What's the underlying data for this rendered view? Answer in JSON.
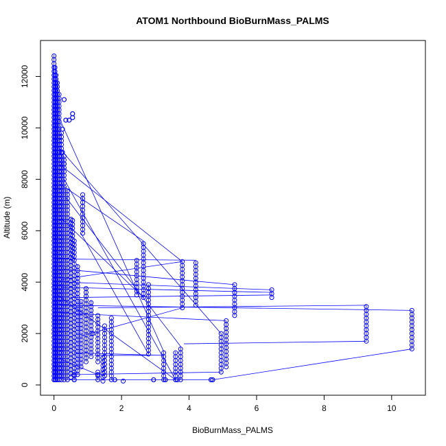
{
  "chart_data": {
    "type": "scatter",
    "title": "ATOM1 Northbound BioBurnMass_PALMS",
    "xlabel": "BioBurnMass_PALMS",
    "ylabel": "Altitude (m)",
    "xlim": [
      -0.4,
      11.0
    ],
    "ylim": [
      -400,
      13400
    ],
    "x_ticks": [
      0,
      2,
      4,
      6,
      8,
      10
    ],
    "y_ticks": [
      0,
      2000,
      4000,
      6000,
      8000,
      10000,
      12000
    ],
    "x_tick_labels": [
      "0",
      "2",
      "4",
      "6",
      "8",
      "10"
    ],
    "y_tick_labels": [
      "0",
      "2000",
      "4000",
      "6000",
      "8000",
      "10000",
      "12000"
    ],
    "colors": {
      "series": "#0000ff",
      "axis": "#000000"
    },
    "series": [
      {
        "name": "",
        "style": "points+lines",
        "columns": [
          {
            "x": 0.0,
            "y": [
              200,
              12850
            ]
          },
          {
            "x": 0.03,
            "y": [
              200,
              12400
            ]
          },
          {
            "x": 0.06,
            "y": [
              200,
              12100
            ]
          },
          {
            "x": 0.1,
            "y": [
              200,
              11800
            ]
          },
          {
            "x": 0.15,
            "y": [
              200,
              11300
            ]
          },
          {
            "x": 0.22,
            "y": [
              200,
              9800
            ]
          },
          {
            "x": 0.3,
            "y": [
              200,
              8900
            ]
          },
          {
            "x": 0.4,
            "y": [
              200,
              7600
            ]
          },
          {
            "x": 0.5,
            "y": [
              300,
              6500
            ]
          },
          {
            "x": 0.6,
            "y": [
              200,
              5600
            ]
          },
          {
            "x": 0.7,
            "y": [
              400,
              4700
            ]
          },
          {
            "x": 0.8,
            "y": [
              700,
              3300
            ]
          },
          {
            "x": 0.95,
            "y": [
              900,
              3800
            ]
          },
          {
            "x": 1.1,
            "y": [
              1100,
              3300
            ]
          },
          {
            "x": 1.3,
            "y": [
              900,
              2700
            ]
          },
          {
            "x": 1.5,
            "y": [
              350,
              2300
            ]
          },
          {
            "x": 1.7,
            "y": [
              200,
              2600
            ]
          },
          {
            "x": 2.45,
            "y": [
              3500,
              4900
            ]
          },
          {
            "x": 2.65,
            "y": [
              3400,
              5600
            ]
          },
          {
            "x": 2.8,
            "y": [
              1200,
              3900
            ]
          },
          {
            "x": 3.25,
            "y": [
              200,
              1300
            ]
          },
          {
            "x": 3.6,
            "y": [
              200,
              1300
            ]
          },
          {
            "x": 3.75,
            "y": [
              200,
              1500
            ]
          },
          {
            "x": 3.8,
            "y": [
              3000,
              4800
            ]
          },
          {
            "x": 4.2,
            "y": [
              3100,
              4800
            ]
          },
          {
            "x": 4.95,
            "y": [
              500,
              2000
            ]
          },
          {
            "x": 5.1,
            "y": [
              700,
              2500
            ]
          },
          {
            "x": 5.35,
            "y": [
              2700,
              3900
            ]
          },
          {
            "x": 6.45,
            "y": [
              3400,
              3700
            ]
          },
          {
            "x": 9.25,
            "y": [
              1700,
              3100
            ]
          },
          {
            "x": 10.6,
            "y": [
              1400,
              2900
            ]
          },
          {
            "x": 0.85,
            "y": [
              5900,
              7400
            ]
          },
          {
            "x": 0.55,
            "y": [
              4900,
              6500
            ]
          },
          {
            "x": 1.3,
            "y": [
              200,
              500
            ]
          },
          {
            "x": 1.45,
            "y": [
              150,
              1050
            ]
          },
          {
            "x": 2.05,
            "y": [
              150,
              200
            ]
          }
        ],
        "points": [
          {
            "x": 0.3,
            "y": 11100
          },
          {
            "x": 0.35,
            "y": 10300
          },
          {
            "x": 0.45,
            "y": 10300
          },
          {
            "x": 0.55,
            "y": 10400
          },
          {
            "x": 0.55,
            "y": 10550
          },
          {
            "x": 0.25,
            "y": 9950
          },
          {
            "x": 0.3,
            "y": 8600
          },
          {
            "x": 0.25,
            "y": 9050
          },
          {
            "x": 1.15,
            "y": 2000
          },
          {
            "x": 1.3,
            "y": 400
          },
          {
            "x": 2.95,
            "y": 200
          },
          {
            "x": 3.3,
            "y": 200
          },
          {
            "x": 3.65,
            "y": 200
          },
          {
            "x": 4.65,
            "y": 200
          },
          {
            "x": 4.7,
            "y": 200
          },
          {
            "x": 1.8,
            "y": 200
          },
          {
            "x": 0.6,
            "y": 200
          },
          {
            "x": 0.6,
            "y": 400
          }
        ],
        "segments": [
          [
            [
              0.15,
              10400
            ],
            [
              3.25,
              1300
            ]
          ],
          [
            [
              0.15,
              8600
            ],
            [
              3.8,
              4800
            ]
          ],
          [
            [
              0.2,
              7800
            ],
            [
              2.65,
              5600
            ]
          ],
          [
            [
              0.35,
              7300
            ],
            [
              3.75,
              1500
            ]
          ],
          [
            [
              0.1,
              4900
            ],
            [
              4.2,
              4850
            ]
          ],
          [
            [
              0.3,
              4500
            ],
            [
              5.35,
              3900
            ]
          ],
          [
            [
              0.3,
              4000
            ],
            [
              6.45,
              3700
            ]
          ],
          [
            [
              0.5,
              3400
            ],
            [
              6.45,
              3500
            ]
          ],
          [
            [
              0.2,
              3800
            ],
            [
              6.45,
              3600
            ]
          ],
          [
            [
              1.3,
              3000
            ],
            [
              9.25,
              3100
            ]
          ],
          [
            [
              0.2,
              3100
            ],
            [
              10.6,
              2900
            ]
          ],
          [
            [
              3.85,
              1600
            ],
            [
              9.25,
              1700
            ]
          ],
          [
            [
              4.7,
              200
            ],
            [
              10.6,
              1400
            ]
          ],
          [
            [
              0.3,
              200
            ],
            [
              4.65,
              200
            ]
          ],
          [
            [
              0.6,
              1250
            ],
            [
              3.25,
              1150
            ]
          ],
          [
            [
              1.2,
              1150
            ],
            [
              2.8,
              1150
            ]
          ],
          [
            [
              0.5,
              400
            ],
            [
              4.95,
              500
            ]
          ],
          [
            [
              0.8,
              1900
            ],
            [
              3.8,
              3000
            ]
          ],
          [
            [
              0.8,
              5900
            ],
            [
              2.8,
              1200
            ]
          ],
          [
            [
              0.1,
              9300
            ],
            [
              4.95,
              2000
            ]
          ],
          [
            [
              0.3,
              8000
            ],
            [
              3.6,
              200
            ]
          ],
          [
            [
              0.2,
              6500
            ],
            [
              2.65,
              3400
            ]
          ],
          [
            [
              0.2,
              4100
            ],
            [
              3.8,
              4800
            ]
          ],
          [
            [
              0.1,
              3500
            ],
            [
              3.6,
              200
            ]
          ],
          [
            [
              0.2,
              2800
            ],
            [
              5.1,
              2500
            ]
          ],
          [
            [
              0.2,
              1000
            ],
            [
              1.3,
              400
            ]
          ]
        ]
      }
    ]
  }
}
